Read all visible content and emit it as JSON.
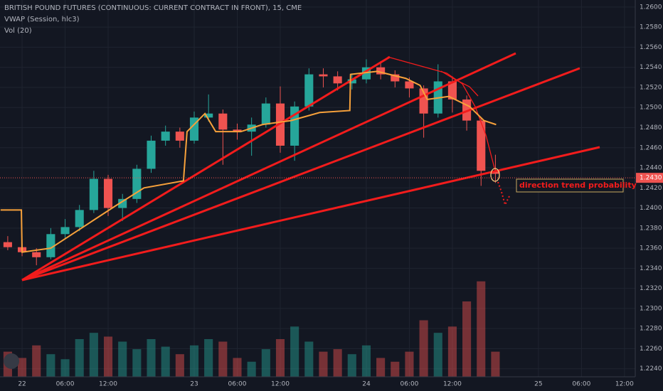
{
  "chart_data": {
    "type": "candlestick",
    "title": "BRITISH POUND FUTURES (CONTINUOUS: CURRENT CONTRACT IN FRONT), 15, CME",
    "indicators": [
      "VWAP (Session, hlc3)",
      "Vol (20)"
    ],
    "x": [
      -2,
      0,
      2,
      4,
      6,
      8,
      10,
      12,
      14,
      16,
      18,
      20,
      22,
      24,
      26,
      28,
      30,
      32,
      34,
      36,
      38,
      40,
      42,
      44,
      46,
      48,
      50,
      52,
      54,
      56,
      58,
      60,
      62,
      64,
      66
    ],
    "open": [
      1.2366,
      1.2361,
      1.2356,
      1.2351,
      1.2374,
      1.2381,
      1.2398,
      1.2429,
      1.24,
      1.2409,
      1.2439,
      1.2467,
      1.2476,
      1.2467,
      1.249,
      1.2494,
      1.2478,
      1.2476,
      1.2483,
      1.2504,
      1.2462,
      1.2501,
      1.2533,
      1.2531,
      1.2524,
      1.2528,
      1.254,
      1.2533,
      1.2526,
      1.2519,
      1.2494,
      1.2526,
      1.2508,
      1.2487,
      1.2437
    ],
    "high": [
      1.2372,
      1.2365,
      1.236,
      1.238,
      1.2389,
      1.2403,
      1.2437,
      1.2433,
      1.2414,
      1.2443,
      1.2472,
      1.2482,
      1.248,
      1.2496,
      1.2513,
      1.2498,
      1.2484,
      1.249,
      1.251,
      1.2521,
      1.2506,
      1.2539,
      1.2539,
      1.2536,
      1.2534,
      1.2548,
      1.2546,
      1.2537,
      1.253,
      1.2522,
      1.2543,
      1.2531,
      1.2512,
      1.249,
      1.2453
    ],
    "low": [
      1.2358,
      1.2352,
      1.2343,
      1.2349,
      1.237,
      1.2377,
      1.2395,
      1.2392,
      1.2387,
      1.2405,
      1.2435,
      1.2462,
      1.246,
      1.2464,
      1.2486,
      1.2443,
      1.2468,
      1.2452,
      1.248,
      1.2455,
      1.2447,
      1.2497,
      1.252,
      1.2517,
      1.2518,
      1.2524,
      1.2528,
      1.252,
      1.251,
      1.247,
      1.249,
      1.2495,
      1.2477,
      1.2422,
      1.2425
    ],
    "close": [
      1.2361,
      1.2356,
      1.2351,
      1.2374,
      1.2381,
      1.2398,
      1.2429,
      1.24,
      1.2409,
      1.2439,
      1.2467,
      1.2476,
      1.2467,
      1.249,
      1.2494,
      1.2478,
      1.2476,
      1.2483,
      1.2504,
      1.2462,
      1.2501,
      1.2533,
      1.2531,
      1.2524,
      1.2528,
      1.254,
      1.2533,
      1.2526,
      1.2519,
      1.2494,
      1.2526,
      1.2508,
      1.2487,
      1.2437,
      1.2434
    ],
    "volume": [
      20,
      15,
      25,
      18,
      14,
      30,
      35,
      32,
      28,
      22,
      30,
      24,
      18,
      25,
      30,
      28,
      15,
      12,
      22,
      30,
      40,
      28,
      20,
      22,
      18,
      25,
      15,
      12,
      20,
      45,
      35,
      40,
      60,
      76,
      20
    ],
    "up_color": "#26a69a",
    "down_color": "#ef5350",
    "vwap": {
      "color": "#f7a13b",
      "x": [
        -3,
        -0.1,
        0,
        4,
        10,
        13,
        17,
        22.5,
        23,
        25.5,
        27,
        30.5,
        33.5,
        37.5,
        41.5,
        45.7,
        45.8,
        49.5,
        53.5,
        55.5,
        56.5,
        59.5,
        62.4,
        64.4,
        66.1
      ],
      "values": [
        1.2398,
        1.2398,
        1.2356,
        1.236,
        1.2388,
        1.2402,
        1.242,
        1.2427,
        1.2476,
        1.2494,
        1.2476,
        1.2476,
        1.2483,
        1.2487,
        1.2495,
        1.2497,
        1.2533,
        1.2536,
        1.2529,
        1.2522,
        1.2508,
        1.2511,
        1.2501,
        1.2487,
        1.2483
      ]
    },
    "xlim": [
      -3.08,
      85.5
    ],
    "xticks": [
      {
        "value": 0,
        "label": "22"
      },
      {
        "value": 6,
        "label": "06:00"
      },
      {
        "value": 12,
        "label": "12:00"
      },
      {
        "value": 24,
        "label": "23"
      },
      {
        "value": 30,
        "label": "06:00"
      },
      {
        "value": 36,
        "label": "12:00"
      },
      {
        "value": 48,
        "label": "24"
      },
      {
        "value": 54,
        "label": "06:00"
      },
      {
        "value": 60,
        "label": "12:00"
      },
      {
        "value": 72,
        "label": "25"
      },
      {
        "value": 78,
        "label": "06:00"
      },
      {
        "value": 84,
        "label": "12:00"
      }
    ],
    "ylim": [
      1.2232,
      1.2607
    ],
    "yticks": [
      {
        "value": 1.224,
        "label": "1.2240"
      },
      {
        "value": 1.226,
        "label": "1.2260"
      },
      {
        "value": 1.228,
        "label": "1.2280"
      },
      {
        "value": 1.23,
        "label": "1.2300"
      },
      {
        "value": 1.232,
        "label": "1.2320"
      },
      {
        "value": 1.234,
        "label": "1.2340"
      },
      {
        "value": 1.236,
        "label": "1.2360"
      },
      {
        "value": 1.238,
        "label": "1.2380"
      },
      {
        "value": 1.24,
        "label": "1.2400"
      },
      {
        "value": 1.242,
        "label": "1.2420"
      },
      {
        "value": 1.244,
        "label": "1.2440"
      },
      {
        "value": 1.246,
        "label": "1.2460"
      },
      {
        "value": 1.248,
        "label": "1.2480"
      },
      {
        "value": 1.25,
        "label": "1.2500"
      },
      {
        "value": 1.252,
        "label": "1.2520"
      },
      {
        "value": 1.254,
        "label": "1.2540"
      },
      {
        "value": 1.256,
        "label": "1.2560"
      },
      {
        "value": 1.258,
        "label": "1.2580"
      },
      {
        "value": 1.26,
        "label": "1.2600"
      }
    ],
    "y2lim": [
      0,
      300
    ],
    "grid": true,
    "current_price": {
      "value": 1.243,
      "label": "1.2430"
    },
    "annotation": "direction trend probability"
  }
}
